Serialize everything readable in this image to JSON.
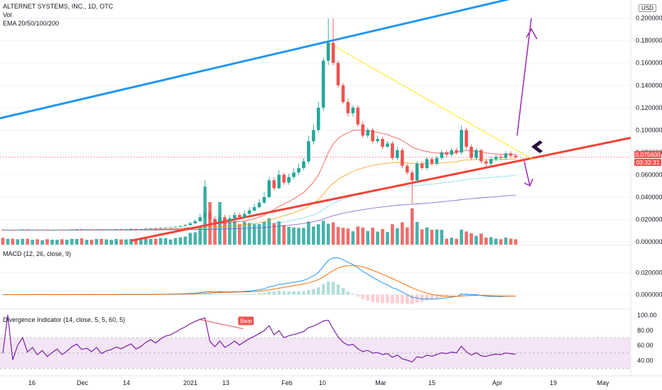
{
  "main": {
    "title": "ALTERNET SYSTEMS, INC., 1D, OTC",
    "vol_label": "Vol",
    "ema_label": "EMA 20/50/100/200",
    "currency": "USD",
    "last_price": "0.075600",
    "countdown": "03:32:31"
  },
  "macd": {
    "label": "MACD (12, 26, close, 9)"
  },
  "divergence": {
    "label": "Divergence Indicator (14, close, 5, 5, 60, 5)",
    "bear_label": "Bear"
  },
  "colors": {
    "up": "#26a69a",
    "down": "#ef5350",
    "blue_line": "#2196f3",
    "red_line": "#f44336",
    "yellow_line": "#ffeb3b",
    "purple_arrow": "#9c27b0",
    "ema20": "#f44336",
    "ema50": "#ff9800",
    "ema100": "#4dd0e1",
    "ema200": "#7e57c2",
    "rsi": "#7b1fa2",
    "rsi_band": "#f3e5f5"
  },
  "chart_data": [
    {
      "type": "candlestick",
      "title": "ALTERNET SYSTEMS, INC., 1D, OTC",
      "y_ticks": [
        "0.000000",
        "0.020000",
        "0.040000",
        "0.060000",
        "0.080000",
        "0.100000",
        "0.120000",
        "0.140000",
        "0.160000",
        "0.180000",
        "0.200000"
      ],
      "ylim": [
        -0.0025,
        0.215
      ],
      "x_ticks": [
        "16",
        "Dec",
        "14",
        "2021",
        "13",
        "Feb",
        "10",
        "Mar",
        "15",
        "Apr",
        "19",
        "May"
      ],
      "close": [
        0.0105,
        0.0108,
        0.0104,
        0.0107,
        0.011,
        0.0106,
        0.0108,
        0.0105,
        0.0107,
        0.0104,
        0.0106,
        0.0108,
        0.0105,
        0.0107,
        0.011,
        0.0112,
        0.0109,
        0.011,
        0.0108,
        0.0111,
        0.0107,
        0.0109,
        0.011,
        0.0112,
        0.0111,
        0.0113,
        0.0115,
        0.0112,
        0.0114,
        0.0118,
        0.0121,
        0.0119,
        0.0124,
        0.0128,
        0.013,
        0.0135,
        0.0142,
        0.015,
        0.0165,
        0.0185,
        0.022,
        0.026,
        0.02,
        0.018,
        0.022,
        0.019,
        0.021,
        0.024,
        0.022,
        0.025,
        0.028,
        0.031,
        0.035,
        0.04,
        0.055,
        0.048,
        0.06,
        0.053,
        0.058,
        0.062,
        0.066,
        0.072,
        0.09,
        0.1,
        0.12,
        0.162,
        0.178,
        0.16,
        0.14,
        0.125,
        0.115,
        0.12,
        0.105,
        0.095,
        0.1,
        0.09,
        0.092,
        0.085,
        0.088,
        0.075,
        0.082,
        0.068,
        0.062,
        0.055,
        0.07,
        0.066,
        0.074,
        0.07,
        0.075,
        0.08,
        0.078,
        0.082,
        0.08,
        0.1,
        0.085,
        0.075,
        0.082,
        0.072,
        0.07,
        0.074,
        0.076,
        0.075,
        0.079,
        0.077,
        0.0756
      ],
      "open": [
        0.0108,
        0.0105,
        0.0108,
        0.0104,
        0.0107,
        0.011,
        0.0106,
        0.0108,
        0.0105,
        0.0107,
        0.0104,
        0.0106,
        0.0108,
        0.0105,
        0.0107,
        0.011,
        0.0112,
        0.0109,
        0.011,
        0.0108,
        0.0111,
        0.0107,
        0.0109,
        0.011,
        0.0112,
        0.0111,
        0.0113,
        0.0115,
        0.0112,
        0.0114,
        0.0118,
        0.0121,
        0.0119,
        0.0124,
        0.0128,
        0.013,
        0.0135,
        0.0142,
        0.015,
        0.0165,
        0.0185,
        0.022,
        0.026,
        0.02,
        0.018,
        0.022,
        0.019,
        0.021,
        0.024,
        0.022,
        0.025,
        0.028,
        0.031,
        0.035,
        0.04,
        0.055,
        0.048,
        0.06,
        0.053,
        0.058,
        0.062,
        0.066,
        0.072,
        0.09,
        0.1,
        0.12,
        0.162,
        0.178,
        0.16,
        0.14,
        0.125,
        0.115,
        0.12,
        0.105,
        0.095,
        0.1,
        0.09,
        0.092,
        0.085,
        0.088,
        0.075,
        0.082,
        0.068,
        0.062,
        0.055,
        0.07,
        0.066,
        0.074,
        0.07,
        0.075,
        0.08,
        0.078,
        0.082,
        0.08,
        0.1,
        0.085,
        0.075,
        0.082,
        0.072,
        0.07,
        0.074,
        0.076,
        0.075,
        0.079,
        0.077
      ],
      "high": [
        0.0112,
        0.0111,
        0.0109,
        0.0109,
        0.0113,
        0.0112,
        0.011,
        0.011,
        0.0109,
        0.0109,
        0.0108,
        0.011,
        0.011,
        0.0109,
        0.0113,
        0.0116,
        0.0115,
        0.0113,
        0.0112,
        0.0114,
        0.0113,
        0.0112,
        0.0113,
        0.0116,
        0.0116,
        0.0117,
        0.0119,
        0.0118,
        0.0118,
        0.0122,
        0.0125,
        0.0125,
        0.0128,
        0.0133,
        0.0134,
        0.014,
        0.0148,
        0.0158,
        0.018,
        0.02,
        0.025,
        0.055,
        0.028,
        0.023,
        0.026,
        0.024,
        0.024,
        0.027,
        0.026,
        0.028,
        0.031,
        0.034,
        0.038,
        0.045,
        0.058,
        0.058,
        0.064,
        0.062,
        0.061,
        0.066,
        0.07,
        0.075,
        0.095,
        0.105,
        0.125,
        0.165,
        0.2,
        0.2,
        0.162,
        0.142,
        0.128,
        0.122,
        0.122,
        0.108,
        0.102,
        0.102,
        0.095,
        0.094,
        0.09,
        0.09,
        0.085,
        0.084,
        0.07,
        0.064,
        0.072,
        0.072,
        0.076,
        0.076,
        0.077,
        0.082,
        0.082,
        0.084,
        0.084,
        0.104,
        0.102,
        0.087,
        0.084,
        0.083,
        0.074,
        0.076,
        0.078,
        0.078,
        0.081,
        0.081,
        0.079
      ],
      "low": [
        0.0102,
        0.0103,
        0.0101,
        0.0102,
        0.0105,
        0.0104,
        0.0104,
        0.0103,
        0.0104,
        0.0102,
        0.0102,
        0.0104,
        0.0103,
        0.0103,
        0.0105,
        0.0108,
        0.0106,
        0.0107,
        0.0106,
        0.0106,
        0.0105,
        0.0105,
        0.0107,
        0.0108,
        0.0109,
        0.011,
        0.0111,
        0.011,
        0.011,
        0.0112,
        0.0116,
        0.0116,
        0.0117,
        0.0122,
        0.0126,
        0.0128,
        0.0133,
        0.014,
        0.0148,
        0.0162,
        0.018,
        0.02,
        0.019,
        0.017,
        0.017,
        0.018,
        0.018,
        0.02,
        0.021,
        0.021,
        0.024,
        0.027,
        0.03,
        0.034,
        0.039,
        0.046,
        0.047,
        0.051,
        0.051,
        0.056,
        0.06,
        0.064,
        0.07,
        0.087,
        0.098,
        0.117,
        0.158,
        0.158,
        0.138,
        0.123,
        0.112,
        0.112,
        0.103,
        0.093,
        0.093,
        0.088,
        0.088,
        0.083,
        0.084,
        0.073,
        0.073,
        0.066,
        0.06,
        0.034,
        0.053,
        0.064,
        0.064,
        0.068,
        0.068,
        0.073,
        0.076,
        0.076,
        0.078,
        0.078,
        0.083,
        0.073,
        0.073,
        0.07,
        0.067,
        0.068,
        0.072,
        0.073,
        0.073,
        0.075,
        0.074
      ]
    },
    {
      "type": "bar",
      "title": "Vol",
      "series_source": "volume (colored by candle direction)"
    },
    {
      "type": "line",
      "title": "EMA 20/50/100/200",
      "series": [
        {
          "name": "EMA 20"
        },
        {
          "name": "EMA 50"
        },
        {
          "name": "EMA 100"
        },
        {
          "name": "EMA 200"
        }
      ]
    },
    {
      "type": "line",
      "title": "MACD (12, 26, close, 9)",
      "y_ticks": [
        "0.000000",
        "0.020000"
      ],
      "ylim": [
        -0.012,
        0.036
      ]
    },
    {
      "type": "line",
      "title": "Divergence Indicator (14, close, 5, 5, 60, 5)",
      "y_ticks": [
        "40.00",
        "60.00",
        "80.00",
        "100.00"
      ],
      "ylim": [
        22,
        104
      ],
      "bands": [
        30,
        70
      ],
      "annotations": [
        "Bear"
      ]
    }
  ]
}
